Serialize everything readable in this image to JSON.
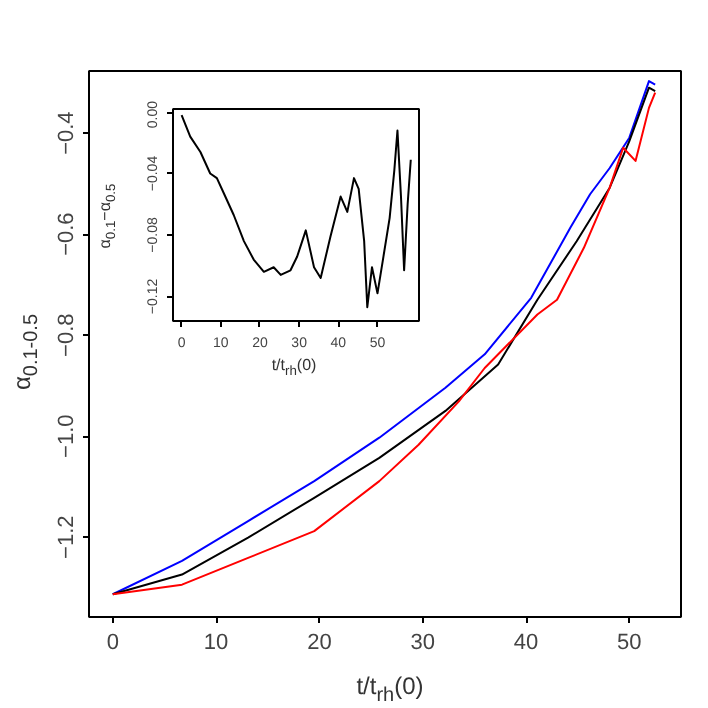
{
  "chart_data": [
    {
      "type": "line",
      "xlabel": "t/t$_{rh}$(0)",
      "ylabel": "α$_{0.1-0.5}$",
      "xlim": [
        -2.3,
        55
      ],
      "ylim": [
        -1.358,
        -0.277
      ],
      "xticks": [
        0,
        10,
        20,
        30,
        40,
        50
      ],
      "yticks": [
        {
          "value": -1.2,
          "label": "−1.2"
        },
        {
          "value": -1.0,
          "label": "−1.0"
        },
        {
          "value": -0.8,
          "label": "−0.8"
        },
        {
          "value": -0.6,
          "label": "−0.6"
        },
        {
          "value": -0.4,
          "label": "−0.4"
        }
      ],
      "grid": false,
      "series": [
        {
          "color": "#0000ff",
          "x": [
            0,
            6.7,
            13.1,
            19.5,
            25.8,
            32.2,
            36,
            40.5,
            44.3,
            46.2,
            48.1,
            50,
            51.9,
            52.5
          ],
          "values": [
            -1.313,
            -1.247,
            -1.168,
            -1.089,
            -1.003,
            -0.904,
            -0.838,
            -0.726,
            -0.587,
            -0.521,
            -0.469,
            -0.409,
            -0.297,
            -0.304
          ]
        },
        {
          "color": "#000000",
          "x": [
            0,
            6.7,
            13.1,
            19.5,
            25.8,
            32.2,
            37.3,
            41.1,
            44.9,
            48.1,
            50,
            51.9,
            52.5
          ],
          "values": [
            -1.313,
            -1.274,
            -1.201,
            -1.122,
            -1.043,
            -0.95,
            -0.858,
            -0.73,
            -0.614,
            -0.508,
            -0.416,
            -0.31,
            -0.317
          ]
        },
        {
          "color": "#ff0000",
          "x": [
            0,
            6.7,
            13.1,
            19.5,
            25.8,
            29.6,
            33.5,
            36,
            41.1,
            43,
            45.6,
            48.1,
            49.4,
            50.6,
            51.9,
            52.5
          ],
          "values": [
            -1.313,
            -1.294,
            -1.241,
            -1.188,
            -1.089,
            -1.017,
            -0.931,
            -0.865,
            -0.759,
            -0.73,
            -0.627,
            -0.508,
            -0.429,
            -0.455,
            -0.35,
            -0.32
          ]
        }
      ]
    },
    {
      "type": "line",
      "xlabel": "t/t$_{rh}$(0)",
      "ylabel": "α$_{0.1}$−α$_{0.5}$",
      "xlim": [
        -2.2,
        60.6
      ],
      "ylim": [
        -0.136,
        0.002
      ],
      "xticks": [
        0,
        10,
        20,
        30,
        40,
        50
      ],
      "yticks": [
        {
          "value": 0,
          "label": "0.00"
        },
        {
          "value": -0.04,
          "label": "−0.04"
        },
        {
          "value": -0.08,
          "label": "−0.08"
        },
        {
          "value": -0.12,
          "label": "−0.12"
        }
      ],
      "grid": false,
      "series": [
        {
          "color": "#000000",
          "x": [
            0,
            2.2,
            4.8,
            7.3,
            9,
            10.8,
            13.3,
            15.9,
            18.4,
            21,
            23.5,
            25.3,
            27.8,
            29.5,
            31.7,
            33.8,
            35.5,
            38,
            40.6,
            42.3,
            44,
            45.2,
            46.6,
            47.4,
            48.6,
            50,
            51.4,
            53.1,
            54.3,
            55.1,
            56,
            56.8,
            57.7,
            58.5
          ],
          "values": [
            -0.002,
            -0.016,
            -0.026,
            -0.04,
            -0.043,
            -0.053,
            -0.067,
            -0.084,
            -0.096,
            -0.104,
            -0.101,
            -0.106,
            -0.103,
            -0.094,
            -0.077,
            -0.101,
            -0.108,
            -0.081,
            -0.055,
            -0.065,
            -0.043,
            -0.05,
            -0.084,
            -0.127,
            -0.101,
            -0.118,
            -0.096,
            -0.069,
            -0.038,
            -0.012,
            -0.055,
            -0.103,
            -0.06,
            -0.031
          ]
        }
      ]
    }
  ]
}
